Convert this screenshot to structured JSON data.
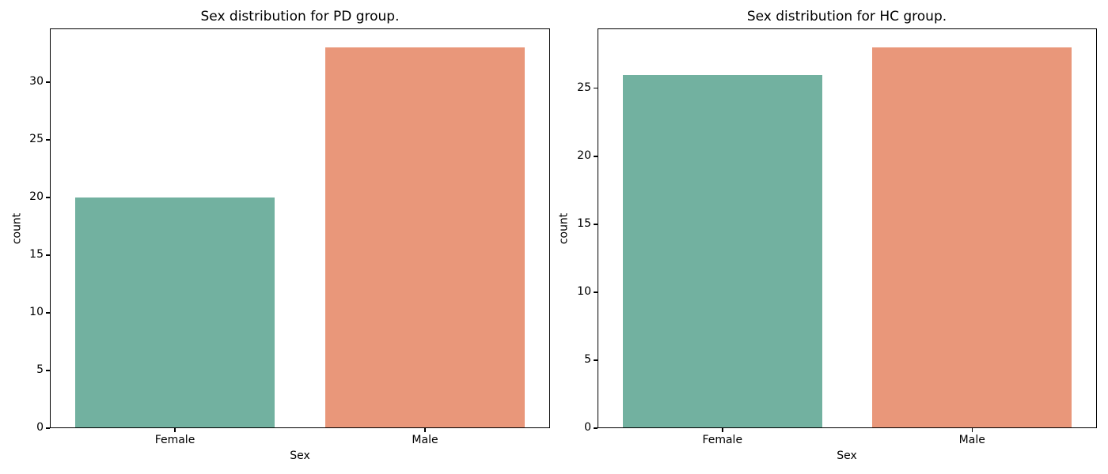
{
  "figure": {
    "background": "#ffffff",
    "spine_color": "#000000",
    "text_color": "#000000"
  },
  "chart_data": [
    {
      "type": "bar",
      "title": "Sex distribution for PD group.",
      "xlabel": "Sex",
      "ylabel": "count",
      "categories": [
        "Female",
        "Male"
      ],
      "values": [
        20,
        33
      ],
      "bar_colors": [
        "#72b1a0",
        "#e9977a"
      ],
      "yticks": [
        0,
        5,
        10,
        15,
        20,
        25,
        30
      ],
      "ylim": [
        0,
        34.65
      ],
      "bar_width_fraction": 0.8,
      "grid": false,
      "legend": "none"
    },
    {
      "type": "bar",
      "title": "Sex distribution for HC group.",
      "xlabel": "Sex",
      "ylabel": "count",
      "categories": [
        "Female",
        "Male"
      ],
      "values": [
        26,
        28
      ],
      "bar_colors": [
        "#72b1a0",
        "#e9977a"
      ],
      "yticks": [
        0,
        5,
        10,
        15,
        20,
        25
      ],
      "ylim": [
        0,
        29.4
      ],
      "bar_width_fraction": 0.8,
      "grid": false,
      "legend": "none"
    }
  ]
}
